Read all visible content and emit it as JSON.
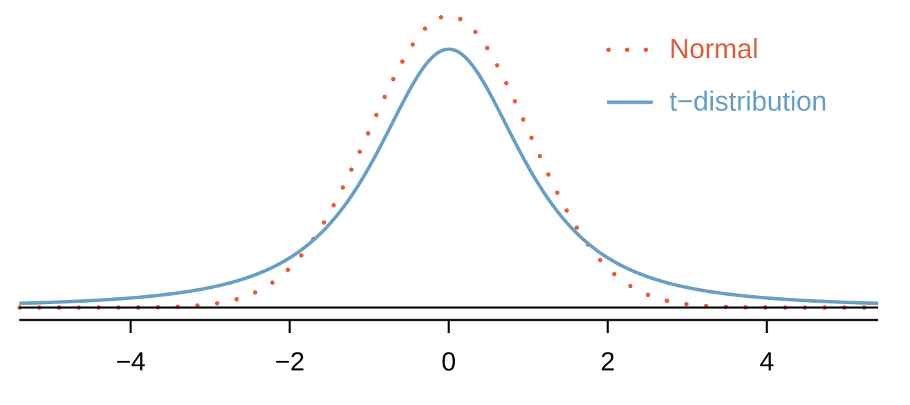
{
  "chart_data": {
    "type": "line",
    "title": "",
    "xlabel": "",
    "ylabel": "",
    "xlim": [
      -5.4,
      5.4
    ],
    "ylim": [
      0,
      0.4
    ],
    "x_ticks": [
      -4,
      -2,
      0,
      2,
      4
    ],
    "x_tick_labels": [
      "−4",
      "−2",
      "0",
      "2",
      "4"
    ],
    "grid": false,
    "legend_position": "top-right",
    "series": [
      {
        "name": "Normal",
        "style": "dotted",
        "color": "#e05d3f",
        "distribution": "standard normal",
        "x": [
          -4,
          -3,
          -2,
          -1.5,
          -1,
          -0.5,
          0,
          0.5,
          1,
          1.5,
          2,
          3,
          4
        ],
        "values": [
          0.0001,
          0.0044,
          0.054,
          0.1295,
          0.242,
          0.3521,
          0.3989,
          0.3521,
          0.242,
          0.1295,
          0.054,
          0.0044,
          0.0001
        ]
      },
      {
        "name": "t−distribution",
        "style": "solid",
        "color": "#6a9fc4",
        "distribution": "t, df = 2",
        "x": [
          -5,
          -4,
          -3,
          -2,
          -1.5,
          -1,
          -0.5,
          0,
          0.5,
          1,
          1.5,
          2,
          3,
          4,
          5
        ],
        "values": [
          0.0071,
          0.0131,
          0.0274,
          0.068,
          0.1141,
          0.1925,
          0.2962,
          0.3536,
          0.2962,
          0.1925,
          0.1141,
          0.068,
          0.0274,
          0.0131,
          0.0071
        ]
      }
    ]
  }
}
